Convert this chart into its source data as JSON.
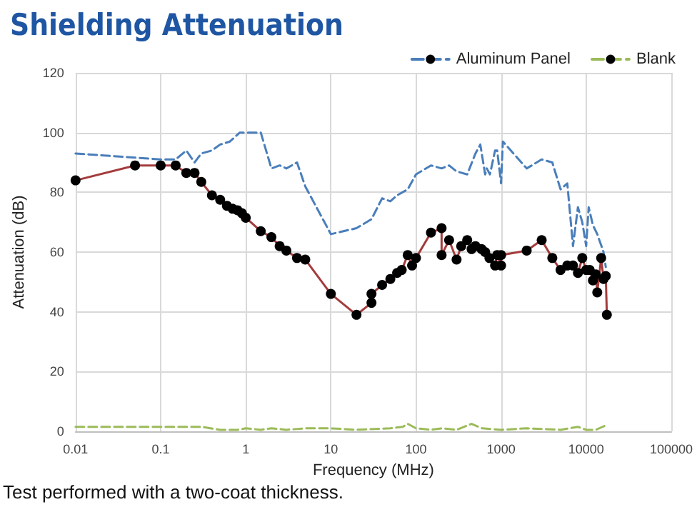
{
  "chart_data": {
    "type": "line",
    "title": "Shielding Attenuation",
    "xlabel": "Frequency (MHz)",
    "ylabel": "Attenuation (dB)",
    "annotations": [
      "Test performed with a two-coat thickness."
    ],
    "log": "x",
    "grid": true,
    "legend": "top right",
    "xlim": [
      0.01,
      100000
    ],
    "xticks": [
      0.01,
      0.1,
      1,
      10,
      100,
      1000,
      10000,
      100000
    ],
    "ylim": [
      0,
      120
    ],
    "yticks": [
      0,
      20,
      40,
      60,
      80,
      100,
      120
    ],
    "series": [
      {
        "name": "Aluminum Panel",
        "color": "#4a7ebb",
        "line_style": "dashed",
        "marker": "none",
        "x": [
          0.01,
          0.1,
          0.15,
          0.2,
          0.25,
          0.3,
          0.4,
          0.5,
          0.65,
          0.85,
          1,
          1.5,
          2,
          2.5,
          3,
          4,
          5,
          10,
          20,
          30,
          40,
          50,
          60,
          80,
          100,
          150,
          200,
          245,
          300,
          400,
          500,
          570,
          650,
          680,
          740,
          850,
          900,
          1000,
          1050,
          2000,
          3000,
          4000,
          5000,
          6000,
          7000,
          8000,
          9000,
          10000,
          10700,
          12000,
          13500,
          16000,
          17000
        ],
        "values": [
          93,
          91,
          91,
          94,
          90,
          93,
          94,
          96,
          97,
          100,
          100,
          100,
          88,
          89,
          88,
          90,
          82,
          66,
          68,
          71,
          78,
          77,
          79,
          81,
          86,
          89,
          88,
          89,
          87,
          86,
          93,
          96,
          86,
          88,
          86,
          94,
          94,
          83,
          97,
          88,
          91,
          90,
          81,
          83,
          62,
          75,
          70,
          62,
          75,
          69,
          66,
          60,
          55
        ]
      },
      {
        "color": "#a33c3c",
        "line_style": "solid",
        "marker": "circle",
        "x": [
          0.01,
          0.05,
          0.1,
          0.15,
          0.2,
          0.25,
          0.3,
          0.4,
          0.5,
          0.6,
          0.7,
          0.8,
          0.9,
          1,
          1.5,
          2,
          2.5,
          3,
          4,
          5,
          10,
          20,
          30,
          30,
          40,
          50,
          60,
          68,
          80,
          90,
          100,
          150,
          200,
          200,
          245,
          300,
          340,
          400,
          450,
          500,
          590,
          650,
          730,
          850,
          900,
          1000,
          1000,
          2000,
          3000,
          4000,
          5000,
          6000,
          7000,
          8000,
          9000,
          10000,
          11000,
          12000,
          13000,
          13500,
          15000,
          16000,
          17000,
          17500
        ],
        "values": [
          84,
          89,
          89,
          89,
          86.5,
          86.5,
          83.5,
          79,
          77.5,
          75.5,
          74.5,
          74,
          73,
          71.5,
          67,
          65,
          62,
          60.5,
          58,
          57.5,
          46,
          39,
          43,
          46,
          49,
          51,
          53,
          54,
          59,
          55.5,
          58,
          66.5,
          68,
          59,
          64,
          57.5,
          62,
          64,
          61,
          62,
          61,
          60,
          58,
          55.5,
          59,
          55.5,
          59,
          60.5,
          64,
          58,
          54,
          55.5,
          55.5,
          53,
          58,
          54,
          54,
          50.5,
          52.5,
          46.5,
          58,
          51,
          52,
          39
        ]
      },
      {
        "name": "Blank",
        "color": "#9bbb59",
        "line_style": "dashed",
        "marker": "none",
        "x": [
          0.01,
          0.1,
          0.3,
          0.5,
          0.8,
          1,
          1.5,
          2,
          3,
          5,
          10,
          20,
          50,
          70,
          80,
          100,
          150,
          200,
          300,
          450,
          600,
          1000,
          2000,
          5000,
          8000,
          10000,
          13000,
          17000
        ],
        "values": [
          1.5,
          1.5,
          1.5,
          0.5,
          0.5,
          1,
          0.5,
          1,
          0.5,
          1,
          1,
          0.5,
          1,
          1.5,
          2.5,
          1,
          0.5,
          1,
          0.5,
          2.5,
          1,
          0.5,
          1,
          0.5,
          1.5,
          0.5,
          0.5,
          2
        ]
      }
    ]
  }
}
